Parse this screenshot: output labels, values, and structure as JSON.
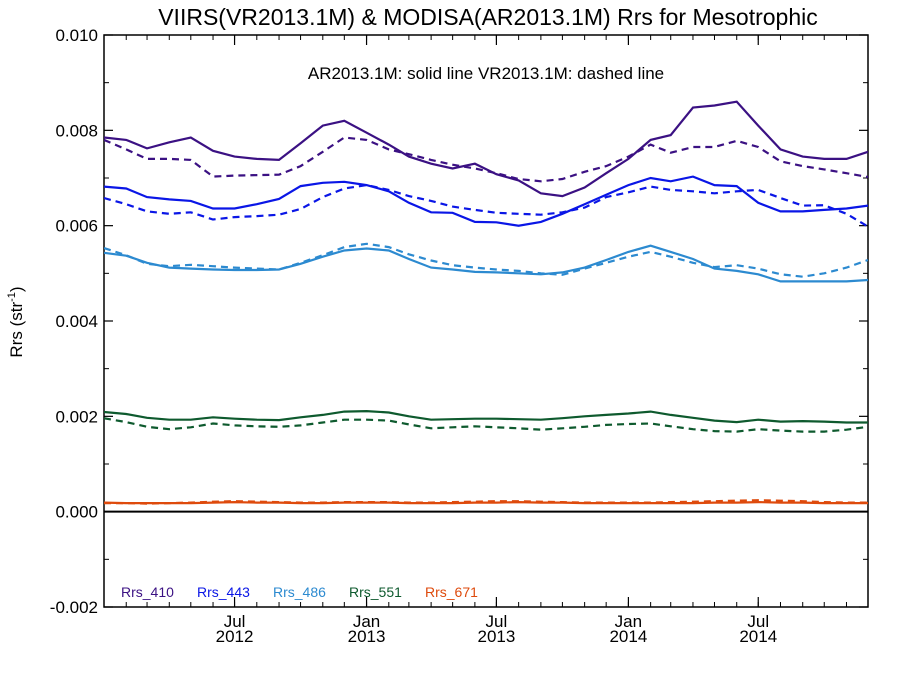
{
  "chart_data": {
    "type": "line",
    "title": "VIIRS(VR2013.1M) & MODISA(AR2013.1M)  Rrs for Mesotrophic",
    "annotation": "AR2013.1M: solid line   VR2013.1M: dashed line",
    "ylabel": "Rrs (str",
    "ylabel_sup": "-1",
    "ylabel_close": ")",
    "ylim": [
      -0.002,
      0.01
    ],
    "yticks": [
      "-0.002",
      "0.000",
      "0.002",
      "0.004",
      "0.006",
      "0.008",
      "0.010"
    ],
    "xlim": [
      "2012-01-01",
      "2014-12-01"
    ],
    "xticks": [
      {
        "date": "2012-07-01",
        "line1": "Jul",
        "line2": "2012"
      },
      {
        "date": "2013-01-01",
        "line1": "Jan",
        "line2": "2013"
      },
      {
        "date": "2013-07-01",
        "line1": "Jul",
        "line2": "2013"
      },
      {
        "date": "2014-01-01",
        "line1": "Jan",
        "line2": "2014"
      },
      {
        "date": "2014-07-01",
        "line1": "Jul",
        "line2": "2014"
      }
    ],
    "zero_line": 0.0,
    "x": [
      "2012-01-01",
      "2012-02-01",
      "2012-03-01",
      "2012-04-01",
      "2012-05-01",
      "2012-06-01",
      "2012-07-01",
      "2012-08-01",
      "2012-09-01",
      "2012-10-01",
      "2012-11-01",
      "2012-12-01",
      "2013-01-01",
      "2013-02-01",
      "2013-03-01",
      "2013-04-01",
      "2013-05-01",
      "2013-06-01",
      "2013-07-01",
      "2013-08-01",
      "2013-09-01",
      "2013-10-01",
      "2013-11-01",
      "2013-12-01",
      "2014-01-01",
      "2014-02-01",
      "2014-03-01",
      "2014-04-01",
      "2014-05-01",
      "2014-06-01",
      "2014-07-01",
      "2014-08-01",
      "2014-09-01",
      "2014-10-01",
      "2014-11-01",
      "2014-12-01"
    ],
    "series": [
      {
        "name": "Rrs_410",
        "color": "#3b1183",
        "style": "solid",
        "values": [
          0.00785,
          0.0078,
          0.00762,
          0.00775,
          0.00785,
          0.00757,
          0.00745,
          0.0074,
          0.00738,
          0.00773,
          0.0081,
          0.0082,
          0.00795,
          0.0077,
          0.00745,
          0.0073,
          0.0072,
          0.0073,
          0.00708,
          0.00695,
          0.00668,
          0.00662,
          0.0068,
          0.0071,
          0.0074,
          0.0078,
          0.0079,
          0.00848,
          0.00852,
          0.0086,
          0.0081,
          0.0076,
          0.00745,
          0.0074,
          0.0074,
          0.00755
        ]
      },
      {
        "name": "Rrs_410",
        "color": "#3b1183",
        "style": "dashed",
        "values": [
          0.0078,
          0.0076,
          0.0074,
          0.0074,
          0.00738,
          0.00703,
          0.00705,
          0.00706,
          0.00707,
          0.00725,
          0.00755,
          0.00785,
          0.0078,
          0.0076,
          0.0075,
          0.00738,
          0.00728,
          0.0072,
          0.0071,
          0.00698,
          0.00693,
          0.00698,
          0.00713,
          0.00725,
          0.00745,
          0.0077,
          0.00753,
          0.00765,
          0.00765,
          0.00778,
          0.00765,
          0.00735,
          0.00725,
          0.00718,
          0.0071,
          0.00702
        ]
      },
      {
        "name": "Rrs_443",
        "color": "#0a16e6",
        "style": "solid",
        "values": [
          0.00682,
          0.00678,
          0.0066,
          0.00655,
          0.00652,
          0.00636,
          0.00636,
          0.00645,
          0.00656,
          0.00683,
          0.0069,
          0.00692,
          0.00685,
          0.00672,
          0.00648,
          0.00628,
          0.00627,
          0.00608,
          0.00607,
          0.006,
          0.00608,
          0.00625,
          0.00645,
          0.00665,
          0.00685,
          0.007,
          0.00693,
          0.00703,
          0.00685,
          0.00683,
          0.00648,
          0.0063,
          0.0063,
          0.00633,
          0.00636,
          0.00642
        ]
      },
      {
        "name": "Rrs_443",
        "color": "#0a16e6",
        "style": "dashed",
        "values": [
          0.00658,
          0.00645,
          0.0063,
          0.00625,
          0.00628,
          0.00613,
          0.00618,
          0.0062,
          0.00623,
          0.00635,
          0.0066,
          0.00678,
          0.00685,
          0.00675,
          0.00662,
          0.00652,
          0.0064,
          0.00633,
          0.00627,
          0.00625,
          0.00623,
          0.00628,
          0.00638,
          0.0066,
          0.0067,
          0.00682,
          0.00675,
          0.00672,
          0.00668,
          0.00672,
          0.00675,
          0.00658,
          0.00642,
          0.00643,
          0.00625,
          0.00598
        ]
      },
      {
        "name": "Rrs_486",
        "color": "#2c8ad0",
        "style": "solid",
        "values": [
          0.00543,
          0.00537,
          0.00522,
          0.00512,
          0.0051,
          0.00508,
          0.00507,
          0.00507,
          0.00508,
          0.0052,
          0.00535,
          0.00548,
          0.00552,
          0.00548,
          0.0053,
          0.00512,
          0.00508,
          0.00503,
          0.00502,
          0.005,
          0.00498,
          0.00502,
          0.00512,
          0.00528,
          0.00545,
          0.00558,
          0.00545,
          0.0053,
          0.0051,
          0.00505,
          0.00498,
          0.00483,
          0.00483,
          0.00483,
          0.00483,
          0.00486
        ]
      },
      {
        "name": "Rrs_486",
        "color": "#2c8ad0",
        "style": "dashed",
        "values": [
          0.00553,
          0.00538,
          0.0052,
          0.00515,
          0.00518,
          0.00515,
          0.00512,
          0.0051,
          0.00508,
          0.00522,
          0.00538,
          0.00555,
          0.00562,
          0.00555,
          0.0054,
          0.00527,
          0.00517,
          0.00512,
          0.00508,
          0.00505,
          0.005,
          0.00497,
          0.0051,
          0.00522,
          0.00535,
          0.00545,
          0.00535,
          0.00522,
          0.00513,
          0.00517,
          0.0051,
          0.00498,
          0.00493,
          0.005,
          0.00512,
          0.00528
        ]
      },
      {
        "name": "Rrs_551",
        "color": "#0e5a2e",
        "style": "solid",
        "values": [
          0.00209,
          0.00205,
          0.00197,
          0.00193,
          0.00193,
          0.00198,
          0.00195,
          0.00193,
          0.00192,
          0.00198,
          0.00203,
          0.0021,
          0.00211,
          0.00208,
          0.002,
          0.00193,
          0.00194,
          0.00195,
          0.00195,
          0.00194,
          0.00193,
          0.00196,
          0.002,
          0.00203,
          0.00206,
          0.0021,
          0.00203,
          0.00197,
          0.00191,
          0.00188,
          0.00193,
          0.00189,
          0.0019,
          0.00189,
          0.00187,
          0.00187
        ]
      },
      {
        "name": "Rrs_551",
        "color": "#0e5a2e",
        "style": "dashed",
        "values": [
          0.00196,
          0.00188,
          0.00178,
          0.00173,
          0.00177,
          0.00185,
          0.00181,
          0.00179,
          0.00178,
          0.00181,
          0.00187,
          0.00193,
          0.00193,
          0.00191,
          0.00183,
          0.00175,
          0.00177,
          0.00179,
          0.00177,
          0.00175,
          0.00172,
          0.00175,
          0.00178,
          0.00182,
          0.00184,
          0.00185,
          0.00179,
          0.00173,
          0.00169,
          0.00168,
          0.00173,
          0.0017,
          0.00168,
          0.00168,
          0.00172,
          0.00178
        ]
      },
      {
        "name": "Rrs_671",
        "color": "#de4a0c",
        "style": "solid",
        "values": [
          0.00019,
          0.00018,
          0.00018,
          0.00018,
          0.00018,
          0.00019,
          0.0002,
          0.00019,
          0.00019,
          0.00018,
          0.00018,
          0.00019,
          0.00019,
          0.00019,
          0.00018,
          0.00018,
          0.00018,
          0.00019,
          0.00019,
          0.0002,
          0.00019,
          0.00019,
          0.00018,
          0.00018,
          0.00018,
          0.00018,
          0.00018,
          0.00018,
          0.00019,
          0.00019,
          0.0002,
          0.00019,
          0.00019,
          0.00018,
          0.00018,
          0.00018
        ]
      },
      {
        "name": "Rrs_671",
        "color": "#de4a0c",
        "style": "dashed",
        "values": [
          0.00018,
          0.00018,
          0.00017,
          0.00018,
          0.00019,
          0.00021,
          0.00022,
          0.00021,
          0.0002,
          0.00019,
          0.00019,
          0.0002,
          0.0002,
          0.0002,
          0.00019,
          0.00019,
          0.0002,
          0.00021,
          0.00022,
          0.00022,
          0.00021,
          0.0002,
          0.00019,
          0.00019,
          0.00019,
          0.00019,
          0.0002,
          0.00021,
          0.00022,
          0.00023,
          0.00024,
          0.00023,
          0.00022,
          0.0002,
          0.00019,
          0.00019
        ]
      }
    ],
    "legend": [
      {
        "label": "Rrs_410",
        "color": "#3b1183"
      },
      {
        "label": "Rrs_443",
        "color": "#0a16e6"
      },
      {
        "label": "Rrs_486",
        "color": "#2c8ad0"
      },
      {
        "label": "Rrs_551",
        "color": "#0e5a2e"
      },
      {
        "label": "Rrs_671",
        "color": "#de4a0c"
      }
    ],
    "legend_placement": "bottom-left",
    "grid": false
  }
}
